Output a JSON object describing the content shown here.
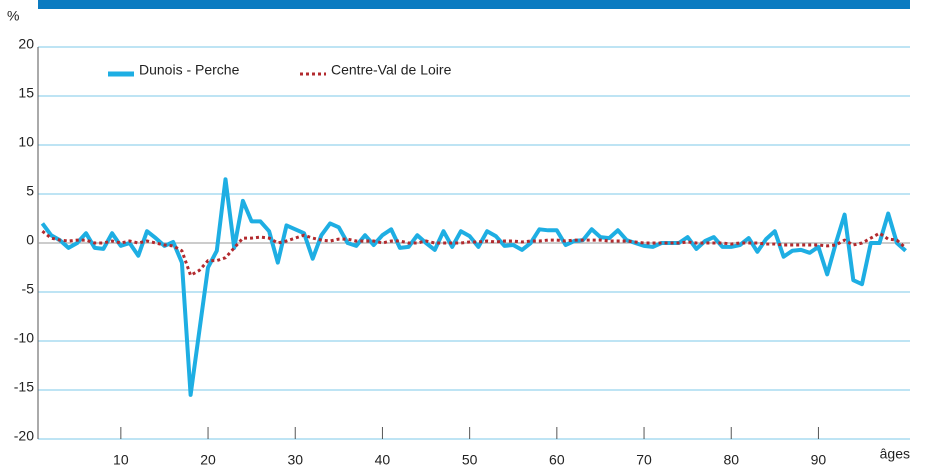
{
  "chart_data": {
    "type": "line",
    "y_label": "%",
    "x_label": "âges",
    "x": [
      1,
      2,
      3,
      4,
      5,
      6,
      7,
      8,
      9,
      10,
      11,
      12,
      13,
      14,
      15,
      16,
      17,
      18,
      19,
      20,
      21,
      22,
      23,
      24,
      25,
      26,
      27,
      28,
      29,
      30,
      31,
      32,
      33,
      34,
      35,
      36,
      37,
      38,
      39,
      40,
      41,
      42,
      43,
      44,
      45,
      46,
      47,
      48,
      49,
      50,
      51,
      52,
      53,
      54,
      55,
      56,
      57,
      58,
      59,
      60,
      61,
      62,
      63,
      64,
      65,
      66,
      67,
      68,
      69,
      70,
      71,
      72,
      73,
      74,
      75,
      76,
      77,
      78,
      79,
      80,
      81,
      82,
      83,
      84,
      85,
      86,
      87,
      88,
      89,
      90,
      91,
      92,
      93,
      94,
      95,
      96,
      97,
      98,
      99,
      100
    ],
    "series": [
      {
        "name": "Dunois - Perche",
        "color": "#1eaee3",
        "dash": false,
        "values": [
          2,
          0.8,
          0.3,
          -0.5,
          0,
          1,
          -0.5,
          -0.6,
          1,
          -0.3,
          0,
          -1.3,
          1.2,
          0.5,
          -0.3,
          0.1,
          -2,
          -15.5,
          -9,
          -2.5,
          -0.8,
          6.5,
          -0.5,
          4.3,
          2.2,
          2.2,
          1.2,
          -2,
          1.8,
          1.4,
          1,
          -1.6,
          0.8,
          2,
          1.6,
          0,
          -0.3,
          0.8,
          -0.2,
          0.8,
          1.4,
          -0.5,
          -0.4,
          0.8,
          0,
          -0.7,
          1.2,
          -0.4,
          1.2,
          0.7,
          -0.4,
          1.2,
          0.7,
          -0.3,
          -0.2,
          -0.7,
          0,
          1.4,
          1.3,
          1.3,
          -0.2,
          0.2,
          0.3,
          1.4,
          0.6,
          0.5,
          1.3,
          0.3,
          0,
          -0.3,
          -0.4,
          0,
          0,
          0,
          0.6,
          -0.6,
          0.2,
          0.6,
          -0.4,
          -0.4,
          -0.2,
          0.5,
          -0.9,
          0.4,
          1.2,
          -1.4,
          -0.8,
          -0.7,
          -1,
          -0.4,
          -3.2,
          0,
          2.9,
          -3.8,
          -4.2,
          0,
          0,
          3,
          0,
          -0.8
        ]
      },
      {
        "name": "Centre-Val de Loire",
        "color": "#b22a2e",
        "dash": true,
        "values": [
          1.2,
          0.5,
          0.3,
          0.2,
          0.3,
          0.3,
          0,
          0,
          0.2,
          0,
          0.2,
          0,
          0.2,
          0,
          -0.2,
          -0.3,
          -0.8,
          -3.3,
          -2.8,
          -1.8,
          -1.8,
          -1.5,
          -0.5,
          0.5,
          0.5,
          0.6,
          0.5,
          0,
          0.2,
          0.5,
          0.8,
          0.5,
          0.3,
          0.2,
          0.4,
          0.4,
          0.2,
          0.2,
          0.2,
          0,
          0.2,
          0.2,
          0,
          0,
          0.2,
          0,
          0,
          0,
          0,
          0.1,
          0.1,
          0.2,
          0.1,
          0.2,
          0.2,
          0.1,
          0.2,
          0.2,
          0.3,
          0.3,
          0.2,
          0.3,
          0.3,
          0.3,
          0.3,
          0.2,
          0.2,
          0.2,
          0.1,
          0,
          0,
          0,
          0,
          0,
          0.1,
          0,
          0,
          0,
          0,
          -0.1,
          0,
          0,
          0,
          -0.1,
          -0.1,
          -0.2,
          -0.2,
          -0.2,
          -0.2,
          -0.2,
          -0.3,
          -0.2,
          0.3,
          -0.2,
          0,
          0.5,
          1,
          0.4,
          0.3,
          -0.5
        ]
      }
    ],
    "xlim": [
      0.5,
      100.5
    ],
    "xticks": [
      10,
      20,
      30,
      40,
      50,
      60,
      70,
      80,
      90
    ],
    "ylim": [
      -20,
      20
    ],
    "yticks": [
      -20,
      -15,
      -10,
      -5,
      0,
      5,
      10,
      15,
      20
    ],
    "grid": true,
    "legend": "top-left"
  }
}
